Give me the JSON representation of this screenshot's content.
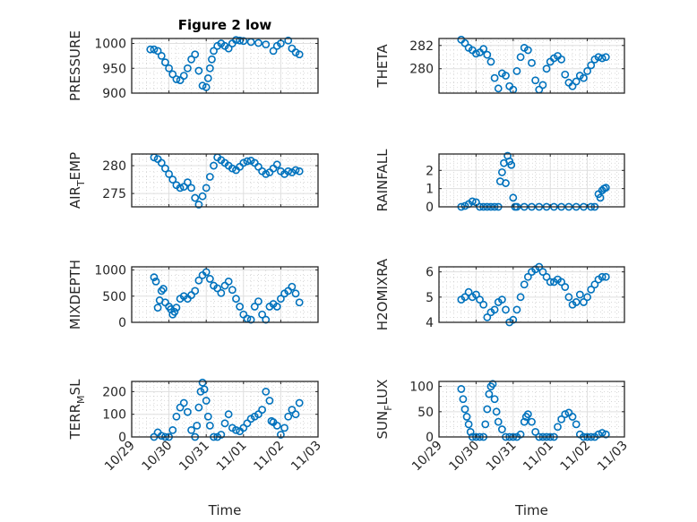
{
  "figure": {
    "title": "Figure 2 low"
  },
  "chart_data": [
    {
      "type": "scatter",
      "name": "pressure",
      "title": "Figure 2 low",
      "xlabel": "",
      "ylabel": "PRESSURE",
      "xlim": [
        0,
        5
      ],
      "ylim": [
        900,
        1010
      ],
      "xticks": [
        0,
        1,
        2,
        3,
        4,
        5
      ],
      "xticklabels": [],
      "yticks": [
        900,
        950,
        1000
      ],
      "yticklabels": [
        "900",
        "950",
        "1000"
      ],
      "grid": "major+minor",
      "x": [
        0.5,
        0.6,
        0.7,
        0.8,
        0.9,
        1.0,
        1.1,
        1.2,
        1.3,
        1.4,
        1.5,
        1.6,
        1.7,
        1.8,
        1.9,
        2.0,
        2.05,
        2.1,
        2.15,
        2.2,
        2.3,
        2.4,
        2.5,
        2.6,
        2.7,
        2.8,
        2.9,
        3.0,
        3.2,
        3.4,
        3.6,
        3.8,
        3.9,
        4.0,
        4.2,
        4.3,
        4.4,
        4.5
      ],
      "y": [
        988,
        988,
        985,
        975,
        962,
        950,
        938,
        928,
        926,
        935,
        950,
        968,
        978,
        945,
        915,
        912,
        930,
        950,
        968,
        985,
        995,
        1000,
        995,
        990,
        1000,
        1007,
        1006,
        1005,
        1003,
        1001,
        998,
        985,
        995,
        1000,
        1006,
        990,
        982,
        978
      ]
    },
    {
      "type": "scatter",
      "name": "theta",
      "title": "",
      "xlabel": "",
      "ylabel": "THETA",
      "xlim": [
        0,
        5
      ],
      "ylim": [
        277.9,
        282.6
      ],
      "xticks": [
        0,
        1,
        2,
        3,
        4,
        5
      ],
      "xticklabels": [],
      "yticks": [
        280,
        282
      ],
      "yticklabels": [
        "280",
        "282"
      ],
      "grid": "major+minor",
      "x": [
        0.6,
        0.7,
        0.8,
        0.9,
        1.0,
        1.1,
        1.2,
        1.3,
        1.4,
        1.5,
        1.6,
        1.7,
        1.8,
        1.9,
        2.0,
        2.1,
        2.2,
        2.3,
        2.4,
        2.5,
        2.6,
        2.7,
        2.8,
        2.9,
        3.0,
        3.1,
        3.2,
        3.3,
        3.4,
        3.5,
        3.6,
        3.7,
        3.8,
        3.9,
        4.0,
        4.1,
        4.2,
        4.3,
        4.4,
        4.5
      ],
      "y": [
        282.5,
        282.2,
        281.8,
        281.6,
        281.3,
        281.4,
        281.7,
        281.2,
        280.6,
        279.2,
        278.3,
        279.6,
        279.4,
        278.5,
        278.2,
        279.8,
        281.0,
        281.8,
        281.6,
        280.5,
        279.0,
        278.2,
        278.6,
        280.0,
        280.6,
        280.9,
        281.1,
        280.8,
        279.5,
        278.8,
        278.5,
        278.9,
        279.4,
        279.2,
        279.8,
        280.3,
        280.8,
        281.0,
        280.9,
        281.0
      ]
    },
    {
      "type": "scatter",
      "name": "air_temp",
      "title": "",
      "xlabel": "",
      "ylabel": "AIR_TEMP",
      "xlim": [
        0,
        5
      ],
      "ylim": [
        272.6,
        282.1
      ],
      "xticks": [
        0,
        1,
        2,
        3,
        4,
        5
      ],
      "xticklabels": [],
      "yticks": [
        275,
        280
      ],
      "yticklabels": [
        "275",
        "280"
      ],
      "grid": "major+minor",
      "x": [
        0.6,
        0.7,
        0.8,
        0.9,
        1.0,
        1.1,
        1.2,
        1.3,
        1.4,
        1.5,
        1.6,
        1.7,
        1.8,
        1.9,
        2.0,
        2.1,
        2.2,
        2.3,
        2.4,
        2.5,
        2.6,
        2.7,
        2.8,
        2.9,
        3.0,
        3.1,
        3.2,
        3.3,
        3.4,
        3.5,
        3.6,
        3.7,
        3.8,
        3.9,
        4.0,
        4.1,
        4.2,
        4.3,
        4.4,
        4.5
      ],
      "y": [
        281.5,
        281.2,
        280.5,
        279.5,
        278.5,
        277.5,
        276.5,
        276.0,
        276.2,
        277.0,
        276.0,
        274.2,
        273.0,
        274.5,
        276.0,
        278.0,
        280.0,
        281.5,
        281.0,
        280.5,
        280.0,
        279.5,
        279.2,
        279.8,
        280.5,
        280.8,
        280.9,
        280.5,
        279.8,
        279.0,
        278.5,
        278.8,
        279.5,
        280.2,
        279.0,
        278.5,
        279.0,
        278.8,
        279.2,
        279.0
      ]
    },
    {
      "type": "scatter",
      "name": "rainfall",
      "title": "",
      "xlabel": "",
      "ylabel": "RAINFALL",
      "xlim": [
        0,
        5
      ],
      "ylim": [
        0,
        2.9
      ],
      "xticks": [
        0,
        1,
        2,
        3,
        4,
        5
      ],
      "xticklabels": [],
      "yticks": [
        0,
        1,
        2
      ],
      "yticklabels": [
        "0",
        "1",
        "2"
      ],
      "grid": "major+minor",
      "x": [
        0.6,
        0.7,
        0.8,
        0.9,
        1.0,
        1.1,
        1.2,
        1.3,
        1.4,
        1.5,
        1.6,
        1.65,
        1.7,
        1.75,
        1.8,
        1.85,
        1.9,
        1.95,
        2.0,
        2.05,
        2.1,
        2.3,
        2.5,
        2.7,
        2.9,
        3.1,
        3.3,
        3.5,
        3.7,
        3.9,
        4.1,
        4.2,
        4.3,
        4.35,
        4.4,
        4.45,
        4.5
      ],
      "y": [
        0,
        0.05,
        0.15,
        0.3,
        0.25,
        0,
        0,
        0,
        0,
        0,
        0,
        1.4,
        1.9,
        2.4,
        1.3,
        2.8,
        2.5,
        2.3,
        0.5,
        0,
        0,
        0,
        0,
        0,
        0,
        0,
        0,
        0,
        0,
        0,
        0,
        0,
        0.7,
        0.5,
        0.9,
        1.0,
        1.05
      ]
    },
    {
      "type": "scatter",
      "name": "mixdepth",
      "title": "",
      "xlabel": "",
      "ylabel": "MIXDEPTH",
      "xlim": [
        0,
        5
      ],
      "ylim": [
        0,
        1060
      ],
      "xticks": [
        0,
        1,
        2,
        3,
        4,
        5
      ],
      "xticklabels": [],
      "yticks": [
        0,
        500,
        1000
      ],
      "yticklabels": [
        "0",
        "500",
        "1000"
      ],
      "grid": "major+minor",
      "x": [
        0.6,
        0.65,
        0.7,
        0.75,
        0.8,
        0.85,
        0.9,
        1.0,
        1.05,
        1.1,
        1.15,
        1.2,
        1.3,
        1.4,
        1.5,
        1.6,
        1.7,
        1.8,
        1.9,
        2.0,
        2.1,
        2.2,
        2.3,
        2.4,
        2.5,
        2.6,
        2.7,
        2.8,
        2.9,
        3.0,
        3.1,
        3.2,
        3.3,
        3.4,
        3.5,
        3.6,
        3.7,
        3.8,
        3.9,
        4.0,
        4.1,
        4.2,
        4.3,
        4.4,
        4.5
      ],
      "y": [
        860,
        780,
        280,
        420,
        600,
        640,
        380,
        300,
        250,
        150,
        200,
        280,
        450,
        500,
        450,
        520,
        600,
        800,
        900,
        960,
        830,
        700,
        650,
        560,
        700,
        780,
        620,
        450,
        300,
        150,
        70,
        50,
        300,
        400,
        150,
        50,
        300,
        350,
        300,
        450,
        550,
        600,
        680,
        550,
        380
      ]
    },
    {
      "type": "scatter",
      "name": "h2omixra",
      "title": "",
      "xlabel": "",
      "ylabel": "H2OMIXRA",
      "xlim": [
        0,
        5
      ],
      "ylim": [
        4,
        6.2
      ],
      "xticks": [
        0,
        1,
        2,
        3,
        4,
        5
      ],
      "xticklabels": [],
      "yticks": [
        4,
        5,
        6
      ],
      "yticklabels": [
        "4",
        "5",
        "6"
      ],
      "grid": "major+minor",
      "x": [
        0.6,
        0.7,
        0.8,
        0.9,
        1.0,
        1.1,
        1.2,
        1.3,
        1.4,
        1.5,
        1.6,
        1.7,
        1.8,
        1.9,
        2.0,
        2.1,
        2.2,
        2.3,
        2.4,
        2.5,
        2.6,
        2.7,
        2.8,
        2.9,
        3.0,
        3.1,
        3.2,
        3.3,
        3.4,
        3.5,
        3.6,
        3.7,
        3.8,
        3.9,
        4.0,
        4.1,
        4.2,
        4.3,
        4.4,
        4.5
      ],
      "y": [
        4.9,
        5.0,
        5.2,
        5.0,
        5.1,
        4.9,
        4.7,
        4.2,
        4.4,
        4.5,
        4.8,
        4.9,
        4.5,
        4.0,
        4.1,
        4.5,
        5.0,
        5.5,
        5.8,
        6.0,
        6.1,
        6.2,
        6.0,
        5.8,
        5.6,
        5.6,
        5.7,
        5.6,
        5.4,
        5.0,
        4.7,
        4.8,
        5.1,
        4.8,
        5.0,
        5.3,
        5.5,
        5.7,
        5.8,
        5.8
      ]
    },
    {
      "type": "scatter",
      "name": "terr_msl",
      "title": "",
      "xlabel": "Time",
      "ylabel": "TERR_MSL",
      "xlim": [
        0,
        5
      ],
      "ylim": [
        0,
        245
      ],
      "xticks": [
        0,
        1,
        2,
        3,
        4,
        5
      ],
      "xticklabels": [
        "10/29",
        "10/30",
        "10/31",
        "11/01",
        "11/02",
        "11/03"
      ],
      "yticks": [
        0,
        100,
        200
      ],
      "yticklabels": [
        "0",
        "100",
        "200"
      ],
      "grid": "major+minor",
      "x": [
        0.6,
        0.7,
        0.8,
        0.9,
        1.0,
        1.1,
        1.2,
        1.3,
        1.4,
        1.5,
        1.6,
        1.7,
        1.75,
        1.8,
        1.85,
        1.9,
        1.95,
        2.0,
        2.05,
        2.1,
        2.2,
        2.3,
        2.4,
        2.5,
        2.6,
        2.7,
        2.8,
        2.9,
        3.0,
        3.1,
        3.2,
        3.3,
        3.4,
        3.5,
        3.6,
        3.7,
        3.75,
        3.8,
        3.9,
        4.0,
        4.1,
        4.2,
        4.3,
        4.4,
        4.5
      ],
      "y": [
        0,
        20,
        5,
        0,
        0,
        30,
        90,
        130,
        150,
        110,
        30,
        0,
        50,
        130,
        200,
        240,
        210,
        160,
        90,
        50,
        0,
        0,
        10,
        60,
        100,
        40,
        30,
        25,
        40,
        60,
        80,
        90,
        100,
        120,
        200,
        160,
        70,
        65,
        50,
        10,
        40,
        90,
        120,
        100,
        150
      ]
    },
    {
      "type": "scatter",
      "name": "sun_flux",
      "title": "",
      "xlabel": "Time",
      "ylabel": "SUN_FLUX",
      "xlim": [
        0,
        5
      ],
      "ylim": [
        0,
        110
      ],
      "xticks": [
        0,
        1,
        2,
        3,
        4,
        5
      ],
      "xticklabels": [
        "10/29",
        "10/30",
        "10/31",
        "11/01",
        "11/02",
        "11/03"
      ],
      "yticks": [
        0,
        50,
        100
      ],
      "yticklabels": [
        "0",
        "50",
        "100"
      ],
      "grid": "major+minor",
      "x": [
        0.6,
        0.65,
        0.7,
        0.75,
        0.8,
        0.85,
        0.9,
        1.0,
        1.1,
        1.2,
        1.25,
        1.3,
        1.35,
        1.4,
        1.45,
        1.5,
        1.55,
        1.6,
        1.7,
        1.8,
        1.9,
        2.0,
        2.1,
        2.2,
        2.3,
        2.35,
        2.4,
        2.5,
        2.6,
        2.7,
        2.8,
        2.9,
        3.0,
        3.1,
        3.2,
        3.3,
        3.4,
        3.5,
        3.6,
        3.7,
        3.8,
        3.9,
        4.0,
        4.1,
        4.2,
        4.3,
        4.4,
        4.5
      ],
      "y": [
        95,
        75,
        55,
        40,
        25,
        10,
        0,
        0,
        0,
        0,
        25,
        55,
        85,
        100,
        105,
        75,
        50,
        30,
        15,
        0,
        0,
        0,
        0,
        5,
        30,
        40,
        45,
        30,
        10,
        0,
        0,
        0,
        0,
        0,
        20,
        35,
        45,
        48,
        40,
        25,
        5,
        0,
        0,
        0,
        0,
        5,
        8,
        5
      ]
    }
  ],
  "colors": {
    "marker": "#0072BD",
    "axes": "#262626",
    "grid_major": "#dfdfdf",
    "grid_minor": "#c0c0c0"
  }
}
